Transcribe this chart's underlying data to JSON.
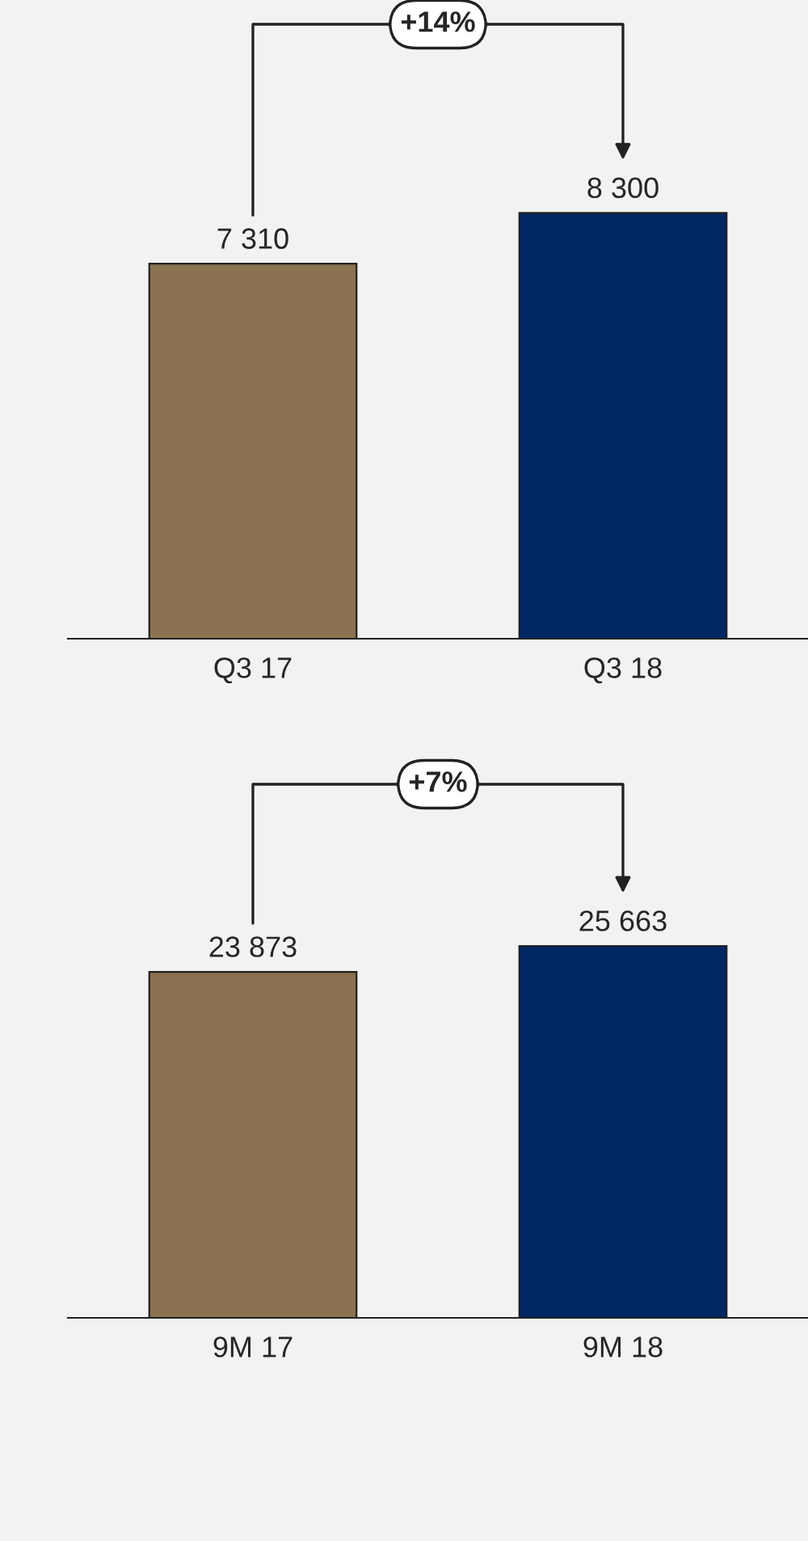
{
  "chart_data": [
    {
      "type": "bar",
      "categories": [
        "Q3 17",
        "Q3 18"
      ],
      "values": [
        7310,
        8300
      ],
      "colors": [
        "#8b7250",
        "#002663"
      ],
      "value_labels": [
        "7 310",
        "8 300"
      ],
      "annotations": [
        "+14%"
      ],
      "tick_labels": "x"
    },
    {
      "type": "bar",
      "categories": [
        "9M 17",
        "9M 18"
      ],
      "values": [
        23873,
        25663
      ],
      "colors": [
        "#8b7250",
        "#002663"
      ],
      "value_labels": [
        "23 873",
        "25 663"
      ],
      "annotations": [
        "+7%"
      ],
      "tick_labels": "x"
    }
  ]
}
